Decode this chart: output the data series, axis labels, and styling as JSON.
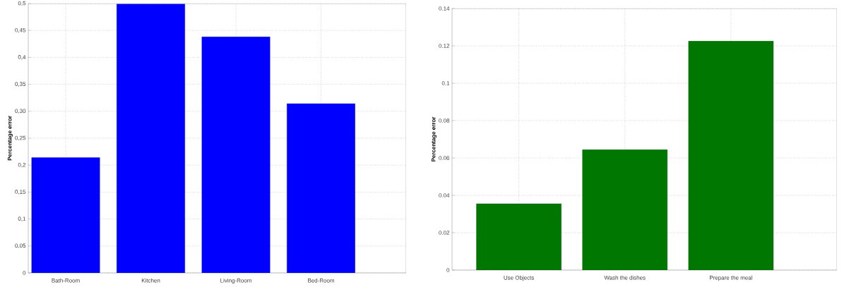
{
  "chart_data": [
    {
      "type": "bar",
      "ylabel": "Percentage error",
      "categories": [
        "Bath-Room",
        "Kitchen",
        "Living-Room",
        "Bed-Room"
      ],
      "values": [
        0.214,
        0.499,
        0.438,
        0.314
      ],
      "color": "#0000ff",
      "ylim": [
        0,
        0.5
      ],
      "yticks": [
        0,
        {
          "value": 0.05,
          "label": "0,05"
        },
        {
          "value": 0.1,
          "label": "0,1"
        },
        {
          "value": 0.15,
          "label": "0,15"
        },
        {
          "value": 0.2,
          "label": "0,2"
        },
        {
          "value": 0.25,
          "label": "0,25"
        },
        {
          "value": 0.3,
          "label": "0,30"
        },
        {
          "value": 0.35,
          "label": "0,35"
        },
        {
          "value": 0.4,
          "label": "0,4"
        },
        {
          "value": 0.45,
          "label": "0,45"
        },
        {
          "value": 0.5,
          "label": "0,5"
        }
      ],
      "grid": true
    },
    {
      "type": "bar",
      "ylabel": "Percentage error",
      "categories": [
        "Use Objects",
        "Wash the dishes",
        "Prepare the meal"
      ],
      "values": [
        0.0355,
        0.0644,
        0.1225
      ],
      "color": "#007700",
      "ylim": [
        0,
        0.14
      ],
      "yticks": [
        0,
        0.02,
        0.04,
        0.06,
        0.08,
        0.1,
        0.12,
        0.14
      ],
      "grid": true
    }
  ]
}
